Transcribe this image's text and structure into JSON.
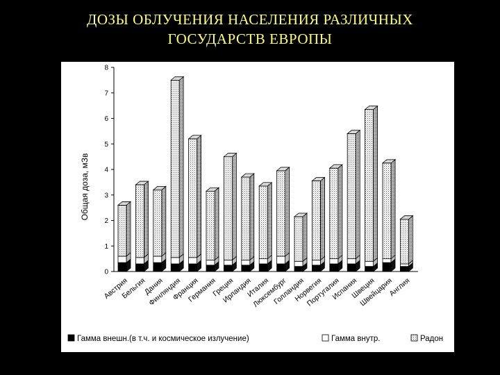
{
  "title": {
    "line1": "ДОЗЫ ОБЛУЧЕНИЯ НАСЕЛЕНИЯ РАЗЛИЧНЫХ",
    "line2": "ГОСУДАРСТВ ЕВРОПЫ"
  },
  "chart_data": {
    "type": "bar",
    "stacked": true,
    "style": "3d",
    "title": "",
    "xlabel": "",
    "ylabel": "Общая доза, мЗв",
    "ylim": [
      0,
      8
    ],
    "yticks": [
      "0",
      "1",
      "2",
      "3",
      "4",
      "5",
      "6",
      "7",
      "8"
    ],
    "grid": false,
    "legend_position": "bottom",
    "categories": [
      "Австрия",
      "Бельгия",
      "Дания",
      "Финляндия",
      "Франция",
      "Германия",
      "Греция",
      "Ирландия",
      "Италия",
      "Люксембург",
      "Голландия",
      "Норвегия",
      "Португалия",
      "Испания",
      "Швеция",
      "Швейцария",
      "Англия"
    ],
    "series": [
      {
        "name": "Гамма внешн.(в т.ч. и космическое излучение)",
        "color": "#000000",
        "values": [
          0.35,
          0.3,
          0.35,
          0.3,
          0.3,
          0.25,
          0.25,
          0.25,
          0.3,
          0.3,
          0.2,
          0.25,
          0.3,
          0.3,
          0.2,
          0.35,
          0.2
        ]
      },
      {
        "name": "Гамма внутр.",
        "color": "#ffffff",
        "values": [
          0.25,
          0.25,
          0.25,
          0.25,
          0.25,
          0.2,
          0.2,
          0.2,
          0.2,
          0.3,
          0.2,
          0.2,
          0.2,
          0.2,
          0.2,
          0.15,
          0.1
        ]
      },
      {
        "name": "Радон",
        "color": "#dddddd",
        "values": [
          2.0,
          2.85,
          2.6,
          6.95,
          4.65,
          2.7,
          4.05,
          3.25,
          2.85,
          3.35,
          1.75,
          3.1,
          3.55,
          4.9,
          5.95,
          3.75,
          1.75
        ]
      }
    ]
  }
}
